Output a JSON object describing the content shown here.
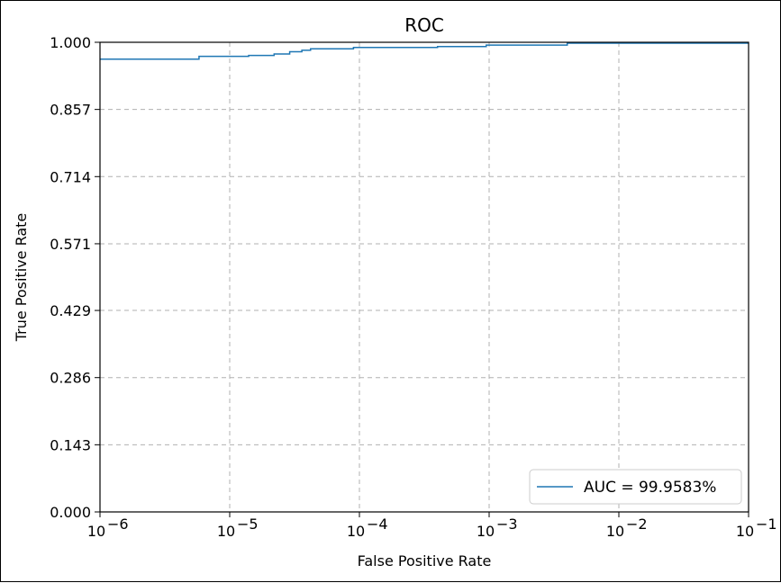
{
  "chart_data": {
    "type": "line",
    "title": "ROC",
    "xlabel": "False Positive Rate",
    "ylabel": "True Positive Rate",
    "xscale": "log",
    "xlim": [
      1e-06,
      0.1
    ],
    "ylim": [
      0.0,
      1.0
    ],
    "x_ticks": [
      {
        "value": 1e-06,
        "base": "10",
        "exp": "−6"
      },
      {
        "value": 1e-05,
        "base": "10",
        "exp": "−5"
      },
      {
        "value": 0.0001,
        "base": "10",
        "exp": "−4"
      },
      {
        "value": 0.001,
        "base": "10",
        "exp": "−3"
      },
      {
        "value": 0.01,
        "base": "10",
        "exp": "−2"
      },
      {
        "value": 0.1,
        "base": "10",
        "exp": "−1"
      }
    ],
    "y_ticks": [
      {
        "value": 0.0,
        "label": "0.000"
      },
      {
        "value": 0.143,
        "label": "0.143"
      },
      {
        "value": 0.286,
        "label": "0.286"
      },
      {
        "value": 0.429,
        "label": "0.429"
      },
      {
        "value": 0.571,
        "label": "0.571"
      },
      {
        "value": 0.714,
        "label": "0.714"
      },
      {
        "value": 0.857,
        "label": "0.857"
      },
      {
        "value": 1.0,
        "label": "1.000"
      }
    ],
    "grid": true,
    "legend_position": "lower-right",
    "series": [
      {
        "name": "AUC = 99.9583%",
        "color": "#1f77b4",
        "step": true,
        "points": [
          [
            1e-06,
            0.964
          ],
          [
            5.8e-06,
            0.964
          ],
          [
            5.8e-06,
            0.97
          ],
          [
            1.4e-05,
            0.97
          ],
          [
            1.4e-05,
            0.972
          ],
          [
            2.2e-05,
            0.972
          ],
          [
            2.2e-05,
            0.975
          ],
          [
            2.9e-05,
            0.975
          ],
          [
            2.9e-05,
            0.98
          ],
          [
            3.6e-05,
            0.98
          ],
          [
            3.6e-05,
            0.983
          ],
          [
            4.2e-05,
            0.983
          ],
          [
            4.2e-05,
            0.986
          ],
          [
            9e-05,
            0.986
          ],
          [
            9e-05,
            0.989
          ],
          [
            0.0004,
            0.989
          ],
          [
            0.0004,
            0.991
          ],
          [
            0.00095,
            0.991
          ],
          [
            0.00095,
            0.994
          ],
          [
            0.004,
            0.994
          ],
          [
            0.004,
            0.998
          ],
          [
            0.1,
            0.998
          ]
        ]
      }
    ]
  }
}
